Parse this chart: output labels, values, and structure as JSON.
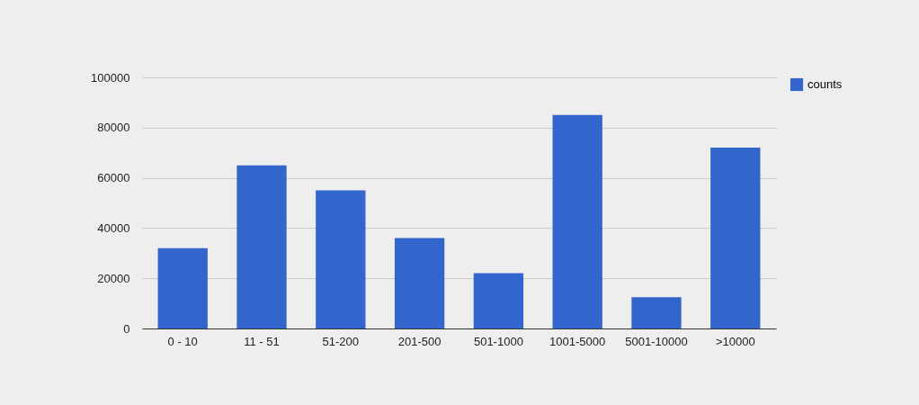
{
  "chart_data": {
    "type": "bar",
    "categories": [
      "0 - 10",
      "11 - 51",
      "51-200",
      "201-500",
      "501-1000",
      "1001-5000",
      "5001-10000",
      ">10000"
    ],
    "series": [
      {
        "name": "counts",
        "color": "#3366cc",
        "values": [
          32000,
          65000,
          55000,
          36000,
          22000,
          85000,
          12500,
          72000
        ]
      }
    ],
    "ylim": [
      0,
      100000
    ],
    "yticks": [
      0,
      20000,
      40000,
      60000,
      80000,
      100000
    ],
    "grid": "y",
    "legend": "top right"
  }
}
